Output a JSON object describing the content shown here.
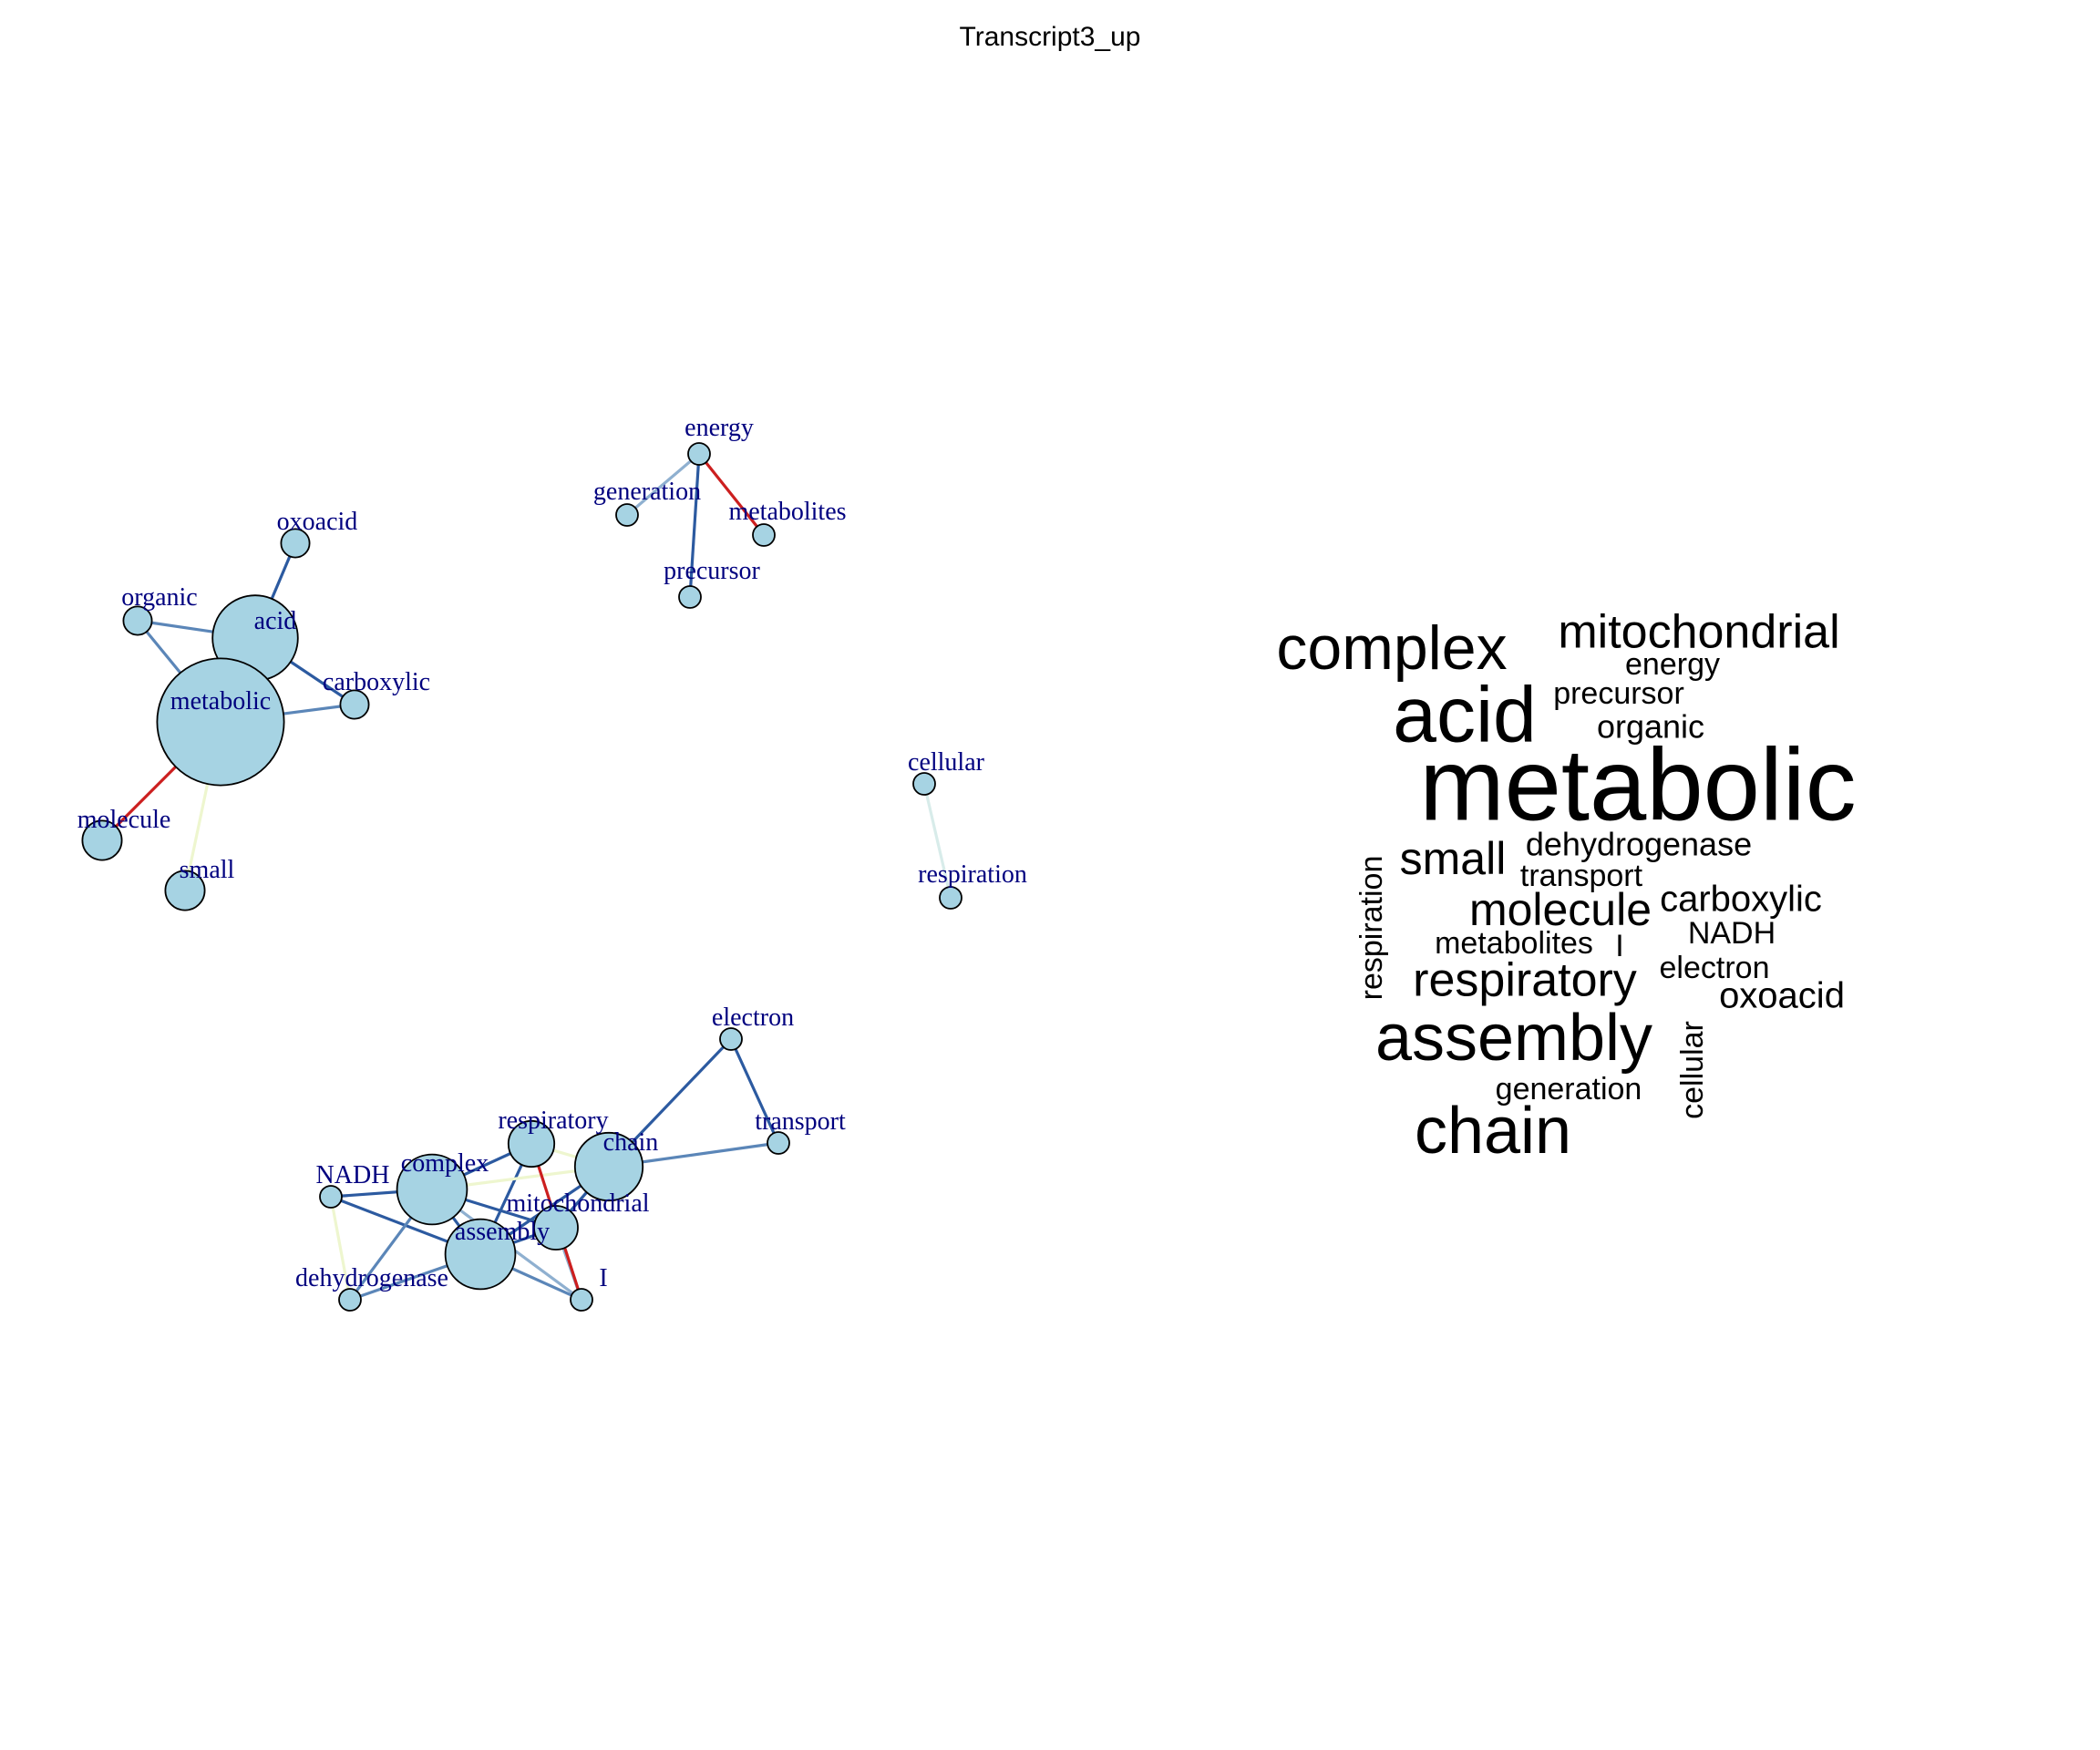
{
  "title": "Transcript3_up",
  "colors": {
    "node_fill": "#a6d3e3",
    "node_label": "#00007f",
    "edge_strong": "#2c5aa0",
    "edge_medium": "#5b86b8",
    "edge_light": "#8fb0d0",
    "edge_red": "#cc1f1f",
    "edge_pale_green": "#eef6cf",
    "edge_pale_blue": "#d8ecea",
    "word_color": "#000000"
  },
  "network": {
    "nodes": [
      {
        "id": "energy",
        "label": "energy",
        "size": 1
      },
      {
        "id": "generation",
        "label": "generation",
        "size": 1
      },
      {
        "id": "metabolites",
        "label": "metabolites",
        "size": 1
      },
      {
        "id": "precursor",
        "label": "precursor",
        "size": 1
      },
      {
        "id": "oxoacid",
        "label": "oxoacid",
        "size": 1.3
      },
      {
        "id": "organic",
        "label": "organic",
        "size": 1.3
      },
      {
        "id": "acid",
        "label": "acid",
        "size": 3.9
      },
      {
        "id": "carboxylic",
        "label": "carboxylic",
        "size": 1.3
      },
      {
        "id": "metabolic",
        "label": "metabolic",
        "size": 5.8
      },
      {
        "id": "molecule",
        "label": "molecule",
        "size": 1.8
      },
      {
        "id": "small",
        "label": "small",
        "size": 1.8
      },
      {
        "id": "cellular",
        "label": "cellular",
        "size": 1
      },
      {
        "id": "respiration",
        "label": "respiration",
        "size": 1
      },
      {
        "id": "electron",
        "label": "electron",
        "size": 1
      },
      {
        "id": "transport",
        "label": "transport",
        "size": 1
      },
      {
        "id": "respiratory",
        "label": "respiratory",
        "size": 2.1
      },
      {
        "id": "chain",
        "label": "chain",
        "size": 3.1
      },
      {
        "id": "NADH",
        "label": "NADH",
        "size": 1
      },
      {
        "id": "complex",
        "label": "complex",
        "size": 3.2
      },
      {
        "id": "mitochondrial",
        "label": "mitochondrial",
        "size": 2
      },
      {
        "id": "assembly",
        "label": "assembly",
        "size": 3.2
      },
      {
        "id": "dehydrogenase",
        "label": "dehydrogenase",
        "size": 1
      },
      {
        "id": "I",
        "label": "I",
        "size": 1
      }
    ],
    "edges": [
      {
        "source": "energy",
        "target": "generation",
        "color": "edge_light"
      },
      {
        "source": "energy",
        "target": "precursor",
        "color": "edge_strong"
      },
      {
        "source": "energy",
        "target": "metabolites",
        "color": "edge_red"
      },
      {
        "source": "oxoacid",
        "target": "acid",
        "color": "edge_strong"
      },
      {
        "source": "organic",
        "target": "acid",
        "color": "edge_medium"
      },
      {
        "source": "organic",
        "target": "metabolic",
        "color": "edge_medium"
      },
      {
        "source": "acid",
        "target": "metabolic",
        "color": "edge_strong"
      },
      {
        "source": "acid",
        "target": "carboxylic",
        "color": "edge_strong"
      },
      {
        "source": "metabolic",
        "target": "carboxylic",
        "color": "edge_medium"
      },
      {
        "source": "metabolic",
        "target": "molecule",
        "color": "edge_red"
      },
      {
        "source": "metabolic",
        "target": "small",
        "color": "edge_pale_green"
      },
      {
        "source": "cellular",
        "target": "respiration",
        "color": "edge_pale_blue"
      },
      {
        "source": "electron",
        "target": "transport",
        "color": "edge_strong"
      },
      {
        "source": "electron",
        "target": "chain",
        "color": "edge_strong"
      },
      {
        "source": "transport",
        "target": "chain",
        "color": "edge_medium"
      },
      {
        "source": "respiratory",
        "target": "chain",
        "color": "edge_pale_green"
      },
      {
        "source": "respiratory",
        "target": "complex",
        "color": "edge_strong"
      },
      {
        "source": "respiratory",
        "target": "assembly",
        "color": "edge_strong"
      },
      {
        "source": "chain",
        "target": "complex",
        "color": "edge_pale_green"
      },
      {
        "source": "chain",
        "target": "mitochondrial",
        "color": "edge_strong"
      },
      {
        "source": "chain",
        "target": "assembly",
        "color": "edge_strong"
      },
      {
        "source": "NADH",
        "target": "complex",
        "color": "edge_strong"
      },
      {
        "source": "NADH",
        "target": "assembly",
        "color": "edge_strong"
      },
      {
        "source": "NADH",
        "target": "dehydrogenase",
        "color": "edge_pale_green"
      },
      {
        "source": "complex",
        "target": "assembly",
        "color": "edge_strong"
      },
      {
        "source": "complex",
        "target": "mitochondrial",
        "color": "edge_strong"
      },
      {
        "source": "complex",
        "target": "dehydrogenase",
        "color": "edge_medium"
      },
      {
        "source": "complex",
        "target": "I",
        "color": "edge_light"
      },
      {
        "source": "assembly",
        "target": "mitochondrial",
        "color": "edge_strong"
      },
      {
        "source": "assembly",
        "target": "dehydrogenase",
        "color": "edge_medium"
      },
      {
        "source": "assembly",
        "target": "I",
        "color": "edge_medium"
      },
      {
        "source": "mitochondrial",
        "target": "I",
        "color": "edge_light"
      },
      {
        "source": "respiratory",
        "target": "I",
        "color": "edge_red"
      }
    ]
  },
  "wordcloud": {
    "words": [
      {
        "text": "metabolic",
        "weight": 100
      },
      {
        "text": "acid",
        "weight": 58
      },
      {
        "text": "complex",
        "weight": 50
      },
      {
        "text": "assembly",
        "weight": 50
      },
      {
        "text": "chain",
        "weight": 48
      },
      {
        "text": "mitochondrial",
        "weight": 36
      },
      {
        "text": "respiratory",
        "weight": 36
      },
      {
        "text": "small",
        "weight": 34
      },
      {
        "text": "molecule",
        "weight": 34
      },
      {
        "text": "carboxylic",
        "weight": 28
      },
      {
        "text": "oxoacid",
        "weight": 27
      },
      {
        "text": "organic",
        "weight": 26
      },
      {
        "text": "dehydrogenase",
        "weight": 25
      },
      {
        "text": "transport",
        "weight": 25
      },
      {
        "text": "energy",
        "weight": 25
      },
      {
        "text": "precursor",
        "weight": 25
      },
      {
        "text": "NADH",
        "weight": 25
      },
      {
        "text": "metabolites",
        "weight": 25
      },
      {
        "text": "electron",
        "weight": 25
      },
      {
        "text": "generation",
        "weight": 25
      },
      {
        "text": "respiration",
        "weight": 25
      },
      {
        "text": "cellular",
        "weight": 25
      },
      {
        "text": "I",
        "weight": 25
      }
    ]
  }
}
